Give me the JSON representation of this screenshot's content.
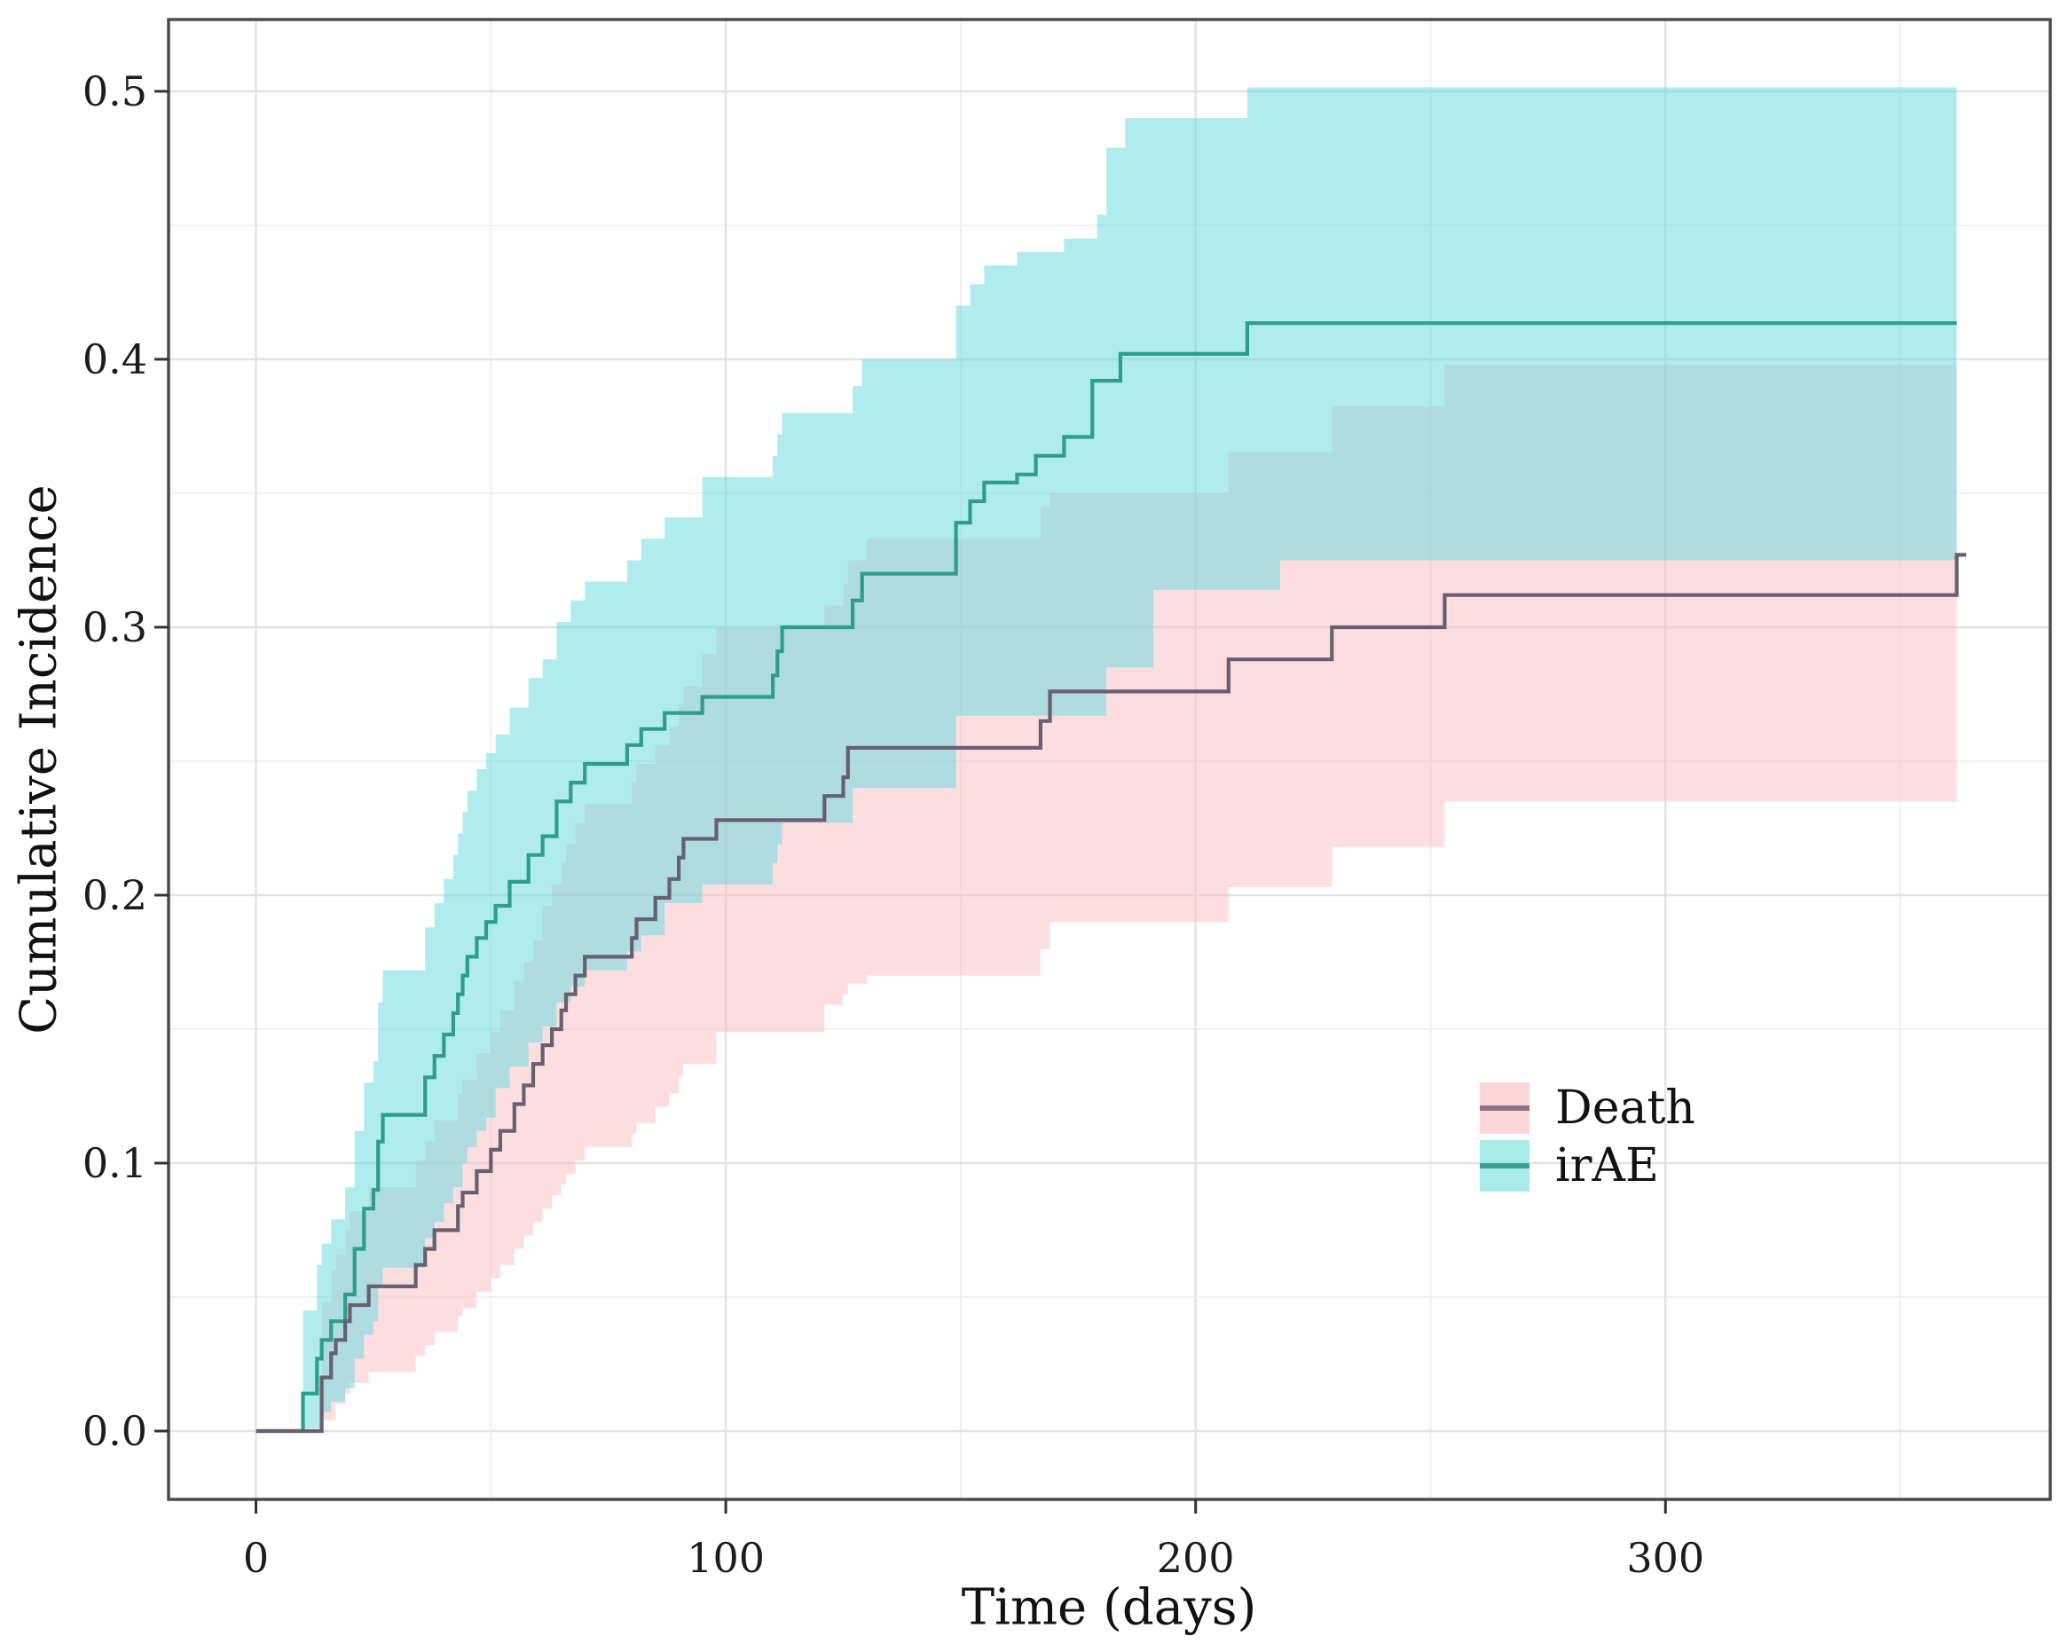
{
  "figure": {
    "kind": "cumulative-incidence competing risks plot",
    "background": "#ffffff",
    "panel_border_color": "#4c4c4c",
    "major_grid_color": "#e3e3e3",
    "minor_grid_color": "#f0f0f0",
    "tick_color": "#333333"
  },
  "chart": {
    "x_axis": {
      "label": "Time (days)",
      "tick_labels": [
        "0",
        "100",
        "200",
        "300"
      ],
      "tick_values": [
        0,
        100,
        200,
        300
      ],
      "minor_tick_values": [
        50,
        150,
        250,
        350
      ]
    },
    "y_axis": {
      "label": "Cumulative Incidence",
      "tick_labels": [
        "0.0",
        "0.1",
        "0.2",
        "0.3",
        "0.4",
        "0.5"
      ],
      "tick_values": [
        0,
        0.1,
        0.2,
        0.3,
        0.4,
        0.5
      ],
      "minor_tick_values": [
        0.05,
        0.15,
        0.25,
        0.35,
        0.45
      ]
    },
    "legend": {
      "items": [
        {
          "label": "Death",
          "fill": "#fbd5d8",
          "line": "#8d7286"
        },
        {
          "label": "irAE",
          "fill": "#a9ebe9",
          "line": "#3aa190"
        }
      ]
    }
  },
  "chart_data": {
    "type": "line",
    "subtype": "step-curves-with-confidence-bands",
    "title": "",
    "xlabel": "Time (days)",
    "ylabel": "Cumulative Incidence",
    "x_unit": "days",
    "x_range": [
      -18.6,
      381.9
    ],
    "y_range": [
      -0.0255,
      0.5268
    ],
    "grid": "on",
    "legend_position": "inside-right-lower",
    "band_end_day": 362,
    "series": [
      {
        "name": "Death",
        "line_color": "#686070",
        "band_fill": "rgba(250,192,197,0.52)",
        "line_end_day": 364,
        "steps": [
          [
            0,
            0
          ],
          [
            14,
            0.02
          ],
          [
            16,
            0.029
          ],
          [
            17,
            0.034
          ],
          [
            19,
            0.041
          ],
          [
            20,
            0.047
          ],
          [
            24,
            0.054
          ],
          [
            34,
            0.062
          ],
          [
            36,
            0.068
          ],
          [
            38,
            0.075
          ],
          [
            43,
            0.084
          ],
          [
            44,
            0.089
          ],
          [
            47,
            0.097
          ],
          [
            50,
            0.105
          ],
          [
            52,
            0.112
          ],
          [
            55,
            0.122
          ],
          [
            57,
            0.129
          ],
          [
            59,
            0.137
          ],
          [
            61,
            0.144
          ],
          [
            63,
            0.15
          ],
          [
            65,
            0.157
          ],
          [
            66,
            0.163
          ],
          [
            68,
            0.17
          ],
          [
            70,
            0.177
          ],
          [
            80,
            0.184
          ],
          [
            81,
            0.191
          ],
          [
            85,
            0.199
          ],
          [
            88,
            0.206
          ],
          [
            90,
            0.214
          ],
          [
            91,
            0.221
          ],
          [
            98,
            0.228
          ],
          [
            121,
            0.237
          ],
          [
            125,
            0.244
          ],
          [
            126,
            0.255
          ],
          [
            167,
            0.265
          ],
          [
            169,
            0.276
          ],
          [
            207,
            0.288
          ],
          [
            229,
            0.3
          ],
          [
            253,
            0.312
          ],
          [
            362,
            0.327
          ]
        ],
        "ci_lower": [
          [
            14,
            0.004
          ],
          [
            17,
            0.01
          ],
          [
            19,
            0.014
          ],
          [
            20,
            0.018
          ],
          [
            24,
            0.022
          ],
          [
            34,
            0.028
          ],
          [
            36,
            0.032
          ],
          [
            38,
            0.037
          ],
          [
            43,
            0.043
          ],
          [
            44,
            0.046
          ],
          [
            47,
            0.052
          ],
          [
            50,
            0.057
          ],
          [
            52,
            0.062
          ],
          [
            55,
            0.068
          ],
          [
            57,
            0.073
          ],
          [
            59,
            0.078
          ],
          [
            61,
            0.083
          ],
          [
            63,
            0.088
          ],
          [
            65,
            0.092
          ],
          [
            66,
            0.096
          ],
          [
            68,
            0.101
          ],
          [
            70,
            0.106
          ],
          [
            80,
            0.111
          ],
          [
            81,
            0.115
          ],
          [
            85,
            0.121
          ],
          [
            88,
            0.126
          ],
          [
            90,
            0.132
          ],
          [
            91,
            0.137
          ],
          [
            98,
            0.149
          ],
          [
            121,
            0.159
          ],
          [
            125,
            0.163
          ],
          [
            126,
            0.167
          ],
          [
            130,
            0.17
          ],
          [
            167,
            0.18
          ],
          [
            169,
            0.19
          ],
          [
            207,
            0.203
          ],
          [
            229,
            0.218
          ],
          [
            253,
            0.235
          ]
        ],
        "ci_upper": [
          [
            14,
            0.048
          ],
          [
            16,
            0.06
          ],
          [
            17,
            0.066
          ],
          [
            19,
            0.075
          ],
          [
            20,
            0.082
          ],
          [
            24,
            0.091
          ],
          [
            34,
            0.101
          ],
          [
            36,
            0.108
          ],
          [
            38,
            0.116
          ],
          [
            43,
            0.126
          ],
          [
            44,
            0.131
          ],
          [
            47,
            0.141
          ],
          [
            50,
            0.149
          ],
          [
            52,
            0.157
          ],
          [
            55,
            0.168
          ],
          [
            57,
            0.175
          ],
          [
            59,
            0.183
          ],
          [
            61,
            0.196
          ],
          [
            63,
            0.204
          ],
          [
            65,
            0.212
          ],
          [
            66,
            0.219
          ],
          [
            68,
            0.227
          ],
          [
            70,
            0.234
          ],
          [
            80,
            0.242
          ],
          [
            81,
            0.249
          ],
          [
            85,
            0.256
          ],
          [
            88,
            0.263
          ],
          [
            90,
            0.271
          ],
          [
            91,
            0.278
          ],
          [
            95,
            0.29
          ],
          [
            98,
            0.3
          ],
          [
            121,
            0.308
          ],
          [
            125,
            0.316
          ],
          [
            126,
            0.325
          ],
          [
            130,
            0.333
          ],
          [
            167,
            0.345
          ],
          [
            169,
            0.35
          ],
          [
            207,
            0.3655
          ],
          [
            229,
            0.3825
          ],
          [
            253,
            0.398
          ]
        ]
      },
      {
        "name": "irAE",
        "line_color": "#2e9e8c",
        "band_fill": "rgba(103,218,222,0.52)",
        "line_end_day": 362,
        "steps": [
          [
            0,
            0
          ],
          [
            10,
            0.014
          ],
          [
            13,
            0.027
          ],
          [
            14,
            0.034
          ],
          [
            16,
            0.041
          ],
          [
            19,
            0.051
          ],
          [
            21,
            0.068
          ],
          [
            23,
            0.083
          ],
          [
            25,
            0.09
          ],
          [
            26,
            0.108
          ],
          [
            27,
            0.118
          ],
          [
            36,
            0.132
          ],
          [
            38,
            0.14
          ],
          [
            40,
            0.148
          ],
          [
            42,
            0.156
          ],
          [
            43,
            0.163
          ],
          [
            44,
            0.17
          ],
          [
            45,
            0.177
          ],
          [
            47,
            0.184
          ],
          [
            49,
            0.19
          ],
          [
            51,
            0.196
          ],
          [
            54,
            0.205
          ],
          [
            58,
            0.215
          ],
          [
            61,
            0.222
          ],
          [
            64,
            0.235
          ],
          [
            67,
            0.242
          ],
          [
            70,
            0.249
          ],
          [
            79,
            0.256
          ],
          [
            82,
            0.262
          ],
          [
            87,
            0.268
          ],
          [
            95,
            0.274
          ],
          [
            110,
            0.282
          ],
          [
            111,
            0.291
          ],
          [
            112,
            0.3
          ],
          [
            127,
            0.31
          ],
          [
            129,
            0.32
          ],
          [
            149,
            0.339
          ],
          [
            152,
            0.347
          ],
          [
            155,
            0.354
          ],
          [
            162,
            0.357
          ],
          [
            166,
            0.364
          ],
          [
            172,
            0.371
          ],
          [
            178,
            0.392
          ],
          [
            184,
            0.402
          ],
          [
            211,
            0.4135
          ]
        ],
        "ci_lower": [
          [
            10,
            0.001
          ],
          [
            14,
            0.007
          ],
          [
            16,
            0.011
          ],
          [
            19,
            0.016
          ],
          [
            21,
            0.027
          ],
          [
            23,
            0.036
          ],
          [
            25,
            0.041
          ],
          [
            26,
            0.054
          ],
          [
            27,
            0.061
          ],
          [
            36,
            0.072
          ],
          [
            38,
            0.078
          ],
          [
            40,
            0.085
          ],
          [
            42,
            0.091
          ],
          [
            44,
            0.1
          ],
          [
            45,
            0.106
          ],
          [
            47,
            0.112
          ],
          [
            49,
            0.117
          ],
          [
            51,
            0.128
          ],
          [
            54,
            0.136
          ],
          [
            58,
            0.145
          ],
          [
            61,
            0.151
          ],
          [
            64,
            0.16
          ],
          [
            67,
            0.166
          ],
          [
            70,
            0.172
          ],
          [
            79,
            0.179
          ],
          [
            82,
            0.185
          ],
          [
            87,
            0.197
          ],
          [
            95,
            0.204
          ],
          [
            110,
            0.212
          ],
          [
            111,
            0.219
          ],
          [
            112,
            0.227
          ],
          [
            127,
            0.24
          ],
          [
            149,
            0.267
          ],
          [
            181,
            0.285
          ],
          [
            191,
            0.314
          ],
          [
            218,
            0.325
          ]
        ],
        "ci_upper": [
          [
            10,
            0.045
          ],
          [
            13,
            0.062
          ],
          [
            14,
            0.07
          ],
          [
            16,
            0.079
          ],
          [
            19,
            0.091
          ],
          [
            21,
            0.112
          ],
          [
            23,
            0.13
          ],
          [
            25,
            0.138
          ],
          [
            26,
            0.16
          ],
          [
            27,
            0.172
          ],
          [
            36,
            0.188
          ],
          [
            38,
            0.197
          ],
          [
            40,
            0.206
          ],
          [
            42,
            0.215
          ],
          [
            43,
            0.223
          ],
          [
            44,
            0.231
          ],
          [
            45,
            0.239
          ],
          [
            47,
            0.247
          ],
          [
            49,
            0.253
          ],
          [
            51,
            0.26
          ],
          [
            54,
            0.27
          ],
          [
            58,
            0.281
          ],
          [
            61,
            0.288
          ],
          [
            64,
            0.302
          ],
          [
            67,
            0.31
          ],
          [
            70,
            0.317
          ],
          [
            79,
            0.325
          ],
          [
            82,
            0.333
          ],
          [
            87,
            0.341
          ],
          [
            95,
            0.356
          ],
          [
            110,
            0.364
          ],
          [
            111,
            0.372
          ],
          [
            112,
            0.38
          ],
          [
            127,
            0.39
          ],
          [
            129,
            0.4
          ],
          [
            149,
            0.42
          ],
          [
            152,
            0.428
          ],
          [
            155,
            0.435
          ],
          [
            162,
            0.44
          ],
          [
            172,
            0.445
          ],
          [
            179,
            0.454
          ],
          [
            181,
            0.479
          ],
          [
            185,
            0.49
          ],
          [
            211,
            0.5015
          ]
        ]
      }
    ]
  }
}
